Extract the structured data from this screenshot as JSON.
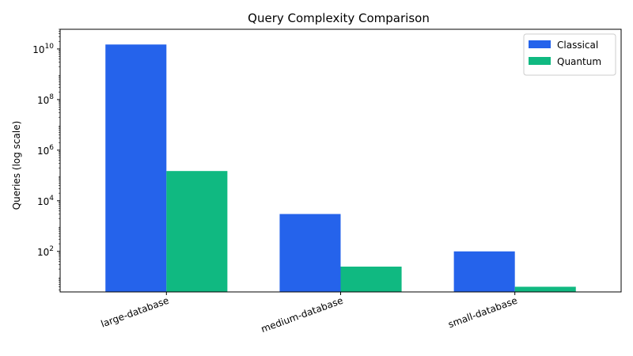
{
  "chart_data": {
    "type": "bar",
    "title": "Query Complexity Comparison",
    "xlabel": "",
    "ylabel": "Queries (log scale)",
    "yscale": "log",
    "ylim": [
      2.5,
      60000000000
    ],
    "y_ticks": [
      100,
      10000,
      1000000,
      100000000,
      10000000000
    ],
    "y_tick_labels": [
      {
        "base": "10",
        "exp": "2"
      },
      {
        "base": "10",
        "exp": "4"
      },
      {
        "base": "10",
        "exp": "6"
      },
      {
        "base": "10",
        "exp": "8"
      },
      {
        "base": "10",
        "exp": "10"
      }
    ],
    "categories": [
      "large-database",
      "medium-database",
      "small-database"
    ],
    "series": [
      {
        "name": "Classical",
        "color": "#2563eb",
        "values": [
          15000000000,
          3000,
          100
        ]
      },
      {
        "name": "Quantum",
        "color": "#10b981",
        "values": [
          150000,
          25,
          4
        ]
      }
    ],
    "grid": false,
    "legend": "top-right",
    "tick_label_rotation": "20deg"
  }
}
